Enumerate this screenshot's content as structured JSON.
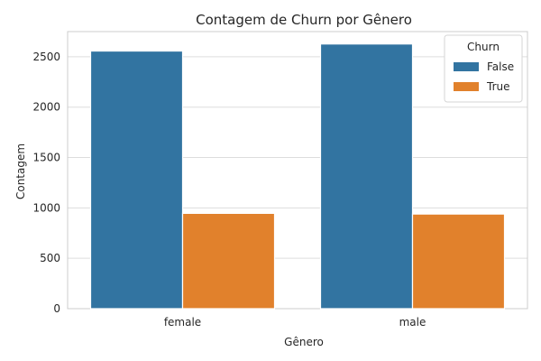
{
  "chart_data": {
    "type": "bar",
    "title": "Contagem de Churn por Gênero",
    "xlabel": "Gênero",
    "ylabel": "Contagem",
    "categories": [
      "female",
      "male"
    ],
    "series": [
      {
        "name": "False",
        "values": [
          2557,
          2627
        ],
        "color": "#3274a1"
      },
      {
        "name": "True",
        "values": [
          946,
          939
        ],
        "color": "#e1812c"
      }
    ],
    "ylim": [
      0,
      2750
    ],
    "yticks": [
      0,
      500,
      1000,
      1500,
      2000,
      2500
    ],
    "grid": true,
    "legend": {
      "title": "Churn",
      "placement": "top-right"
    }
  }
}
